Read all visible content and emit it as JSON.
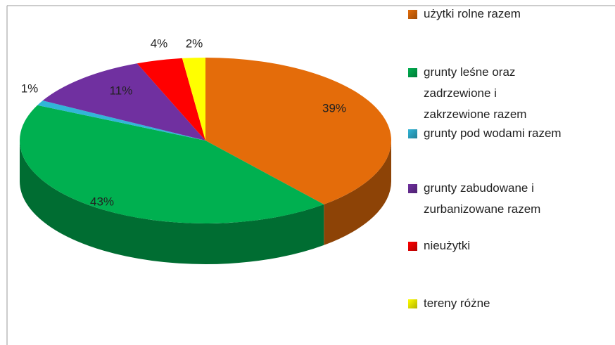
{
  "chart_data": {
    "type": "pie3d",
    "categories": [
      "użytki rolne razem",
      "grunty leśne oraz zadrzewione i zakrzewione razem",
      "grunty pod wodami razem",
      "grunty zabudowane i zurbanizowane razem",
      "nieużytki",
      "tereny różne"
    ],
    "values": [
      39,
      43,
      1,
      11,
      4,
      2
    ],
    "value_labels": [
      "39%",
      "43%",
      "1%",
      "11%",
      "4%",
      "2%"
    ],
    "colors": [
      "#e46c0a",
      "#00b050",
      "#31b6d8",
      "#7030a0",
      "#ff0000",
      "#ffff00"
    ],
    "legend": "right"
  }
}
